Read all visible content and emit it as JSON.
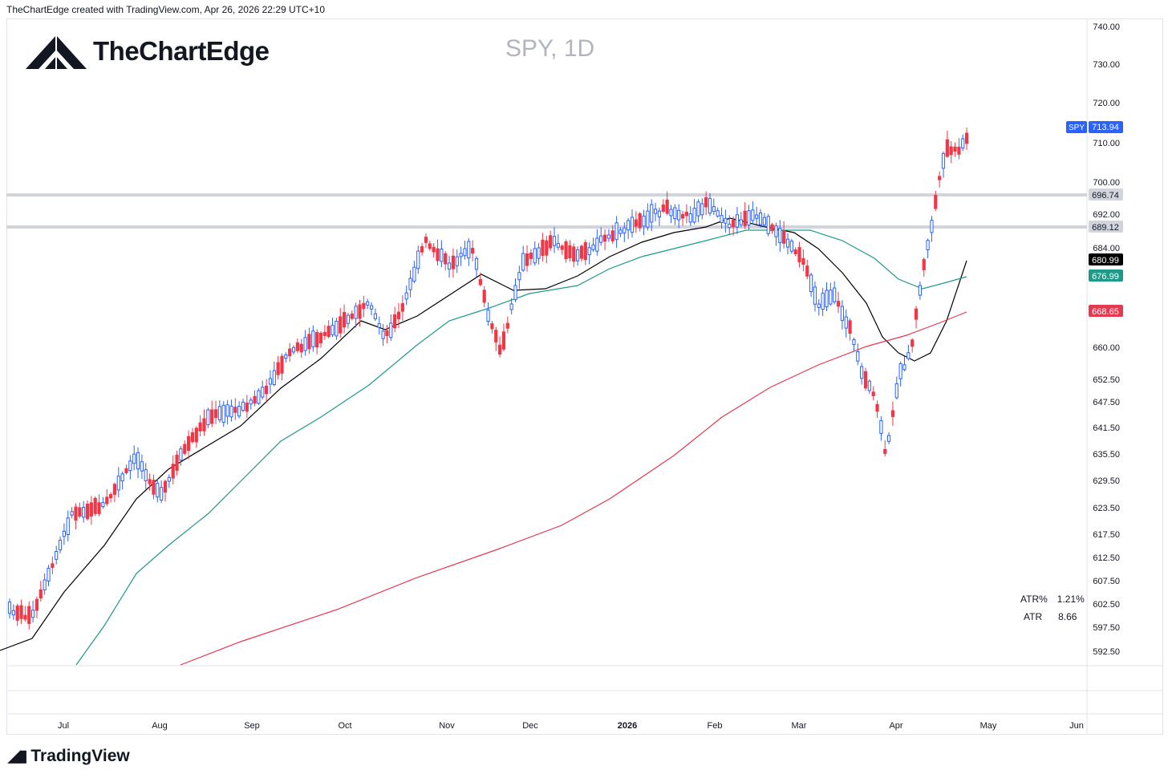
{
  "header": {
    "attribution": "TheChartEdge created with TradingView.com, Apr 26, 2026 22:29 UTC+10"
  },
  "brand": {
    "name": "TheChartEdge"
  },
  "footer": {
    "logo_text": "TradingView"
  },
  "chart_data": {
    "type": "candlestick",
    "title": "SPY, 1D",
    "symbol": "SPY",
    "last_price": "713.94",
    "y_ticks": [
      "740.00",
      "730.00",
      "720.00",
      "710.00",
      "700.00",
      "692.00",
      "684.00",
      "660.00",
      "652.50",
      "647.50",
      "641.50",
      "635.50",
      "629.50",
      "623.50",
      "617.50",
      "612.50",
      "607.50",
      "602.50",
      "597.50",
      "592.50"
    ],
    "x_ticks": [
      "Jul",
      "Aug",
      "Sep",
      "Oct",
      "Nov",
      "Dec",
      "2026",
      "Feb",
      "Mar",
      "Apr",
      "May",
      "Jun"
    ],
    "horizontal_levels": [
      {
        "price": 696.74,
        "label": "696.74"
      },
      {
        "price": 689.12,
        "label": "689.12"
      }
    ],
    "indicator_labels": [
      {
        "label": "680.99",
        "color": "#000000"
      },
      {
        "label": "676.99",
        "color": "#1e9a8a"
      },
      {
        "label": "668.65",
        "color": "#e53950"
      }
    ],
    "moving_averages": [
      {
        "color": "#000000",
        "points": [
          [
            0,
            811
          ],
          [
            40,
            796
          ],
          [
            80,
            738
          ],
          [
            130,
            680
          ],
          [
            170,
            622
          ],
          [
            210,
            585
          ],
          [
            260,
            555
          ],
          [
            300,
            531
          ],
          [
            350,
            484
          ],
          [
            400,
            447
          ],
          [
            450,
            400
          ],
          [
            480,
            411
          ],
          [
            520,
            394
          ],
          [
            560,
            368
          ],
          [
            600,
            342
          ],
          [
            640,
            362
          ],
          [
            680,
            360
          ],
          [
            720,
            344
          ],
          [
            760,
            320
          ],
          [
            800,
            302
          ],
          [
            840,
            290
          ],
          [
            880,
            283
          ],
          [
            910,
            272
          ],
          [
            950,
            282
          ],
          [
            990,
            290
          ],
          [
            1020,
            310
          ],
          [
            1050,
            340
          ],
          [
            1080,
            378
          ],
          [
            1100,
            420
          ],
          [
            1120,
            440
          ],
          [
            1140,
            450
          ],
          [
            1160,
            440
          ],
          [
            1180,
            400
          ],
          [
            1205,
            325
          ]
        ]
      },
      {
        "color": "#1e9a8a",
        "points": [
          [
            95,
            829
          ],
          [
            130,
            780
          ],
          [
            170,
            715
          ],
          [
            210,
            680
          ],
          [
            260,
            640
          ],
          [
            300,
            600
          ],
          [
            350,
            550
          ],
          [
            400,
            520
          ],
          [
            460,
            480
          ],
          [
            520,
            430
          ],
          [
            560,
            400
          ],
          [
            610,
            384
          ],
          [
            660,
            366
          ],
          [
            720,
            356
          ],
          [
            760,
            335
          ],
          [
            800,
            320
          ],
          [
            840,
            310
          ],
          [
            880,
            300
          ],
          [
            930,
            287
          ],
          [
            970,
            287
          ],
          [
            1010,
            287
          ],
          [
            1050,
            300
          ],
          [
            1090,
            322
          ],
          [
            1120,
            348
          ],
          [
            1150,
            360
          ],
          [
            1180,
            352
          ],
          [
            1205,
            345
          ]
        ]
      },
      {
        "color": "#e53950",
        "points": [
          [
            225,
            829
          ],
          [
            300,
            800
          ],
          [
            420,
            760
          ],
          [
            520,
            720
          ],
          [
            620,
            685
          ],
          [
            700,
            655
          ],
          [
            760,
            622
          ],
          [
            840,
            568
          ],
          [
            900,
            520
          ],
          [
            960,
            483
          ],
          [
            1020,
            455
          ],
          [
            1080,
            432
          ],
          [
            1130,
            418
          ],
          [
            1170,
            403
          ],
          [
            1205,
            389
          ]
        ]
      }
    ],
    "atr": {
      "atr_pct_label": "ATR%",
      "atr_pct_value": "1.21%",
      "atr_label": "ATR",
      "atr_value": "8.66"
    }
  },
  "colors": {
    "up": "#2962ff",
    "down": "#f23645",
    "grid_line": "#d1d4dc",
    "axis_text": "#131722"
  }
}
